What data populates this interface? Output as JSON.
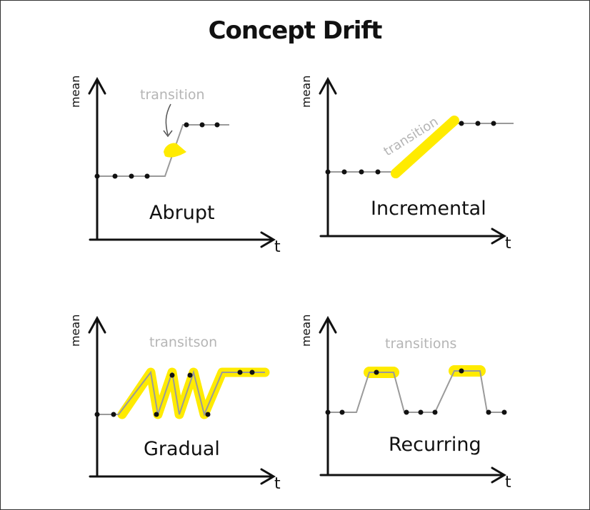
{
  "title": "Concept Drift",
  "colors": {
    "ink": "#111111",
    "line": "#9a9a9a",
    "annotation": "#b5b5b5",
    "highlight": "#ffeb00"
  },
  "panels": [
    {
      "name": "Abrupt",
      "y_label": "mean",
      "x_label": "t",
      "annotation": "transition"
    },
    {
      "name": "Incremental",
      "y_label": "mean",
      "x_label": "t",
      "annotation": "transition"
    },
    {
      "name": "Gradual",
      "y_label": "mean",
      "x_label": "t",
      "annotation": "transitson"
    },
    {
      "name": "Recurring",
      "y_label": "mean",
      "x_label": "t",
      "annotation": "transitions"
    }
  ]
}
